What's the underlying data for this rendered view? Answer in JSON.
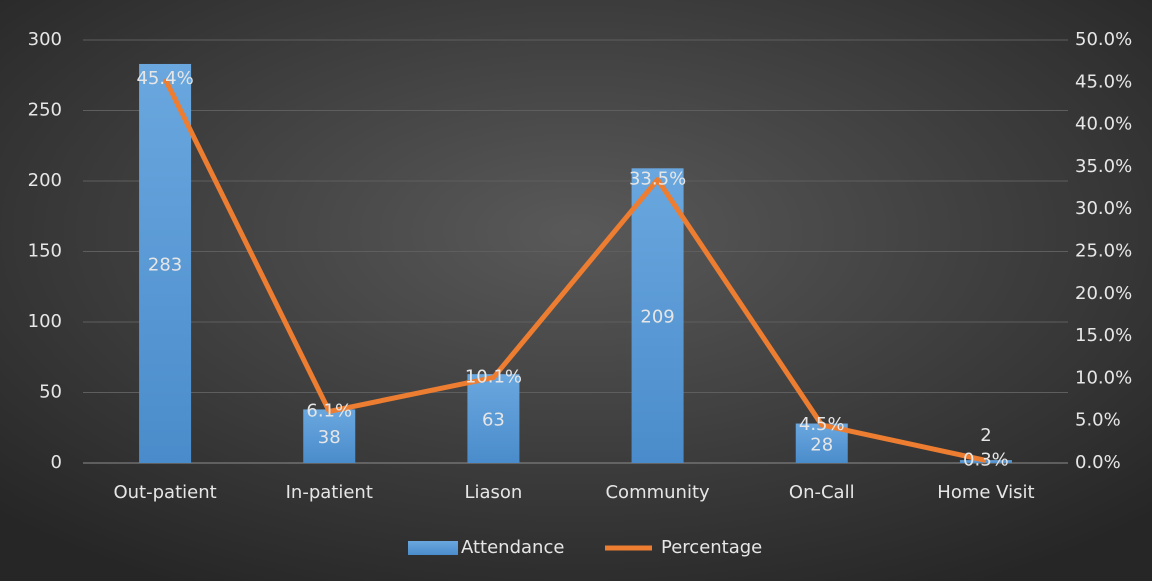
{
  "chart_data": {
    "type": "combo",
    "categories": [
      "Out-patient",
      "In-patient",
      "Liason",
      "Community",
      "On-Call",
      "Home Visit"
    ],
    "series": [
      {
        "name": "Attendance",
        "type": "bar",
        "color": "#5b9bd5",
        "values": [
          283,
          38,
          63,
          209,
          28,
          2
        ]
      },
      {
        "name": "Percentage",
        "type": "line",
        "axis": "y2",
        "color": "#ed7d31",
        "values": [
          45.4,
          6.1,
          10.1,
          33.5,
          4.5,
          0.3
        ],
        "value_labels": [
          "45.4%",
          "6.1%",
          "10.1%",
          "33.5%",
          "4.5%",
          "0.3%"
        ]
      }
    ],
    "ylim": [
      0,
      300
    ],
    "yticks": [
      0,
      50,
      100,
      150,
      200,
      250,
      300
    ],
    "y2lim": [
      0,
      50
    ],
    "y2ticks": [
      {
        "value": 0,
        "label": "0.0%"
      },
      {
        "value": 5,
        "label": "5.0%"
      },
      {
        "value": 10,
        "label": "10.0%"
      },
      {
        "value": 15,
        "label": "15.0%"
      },
      {
        "value": 20,
        "label": "20.0%"
      },
      {
        "value": 25,
        "label": "25.0%"
      },
      {
        "value": 30,
        "label": "30.0%"
      },
      {
        "value": 35,
        "label": "35.0%"
      },
      {
        "value": 40,
        "label": "40.0%"
      },
      {
        "value": 45,
        "label": "45.0%"
      },
      {
        "value": 50,
        "label": "50.0%"
      }
    ],
    "grid": true,
    "legend": "bottom"
  }
}
